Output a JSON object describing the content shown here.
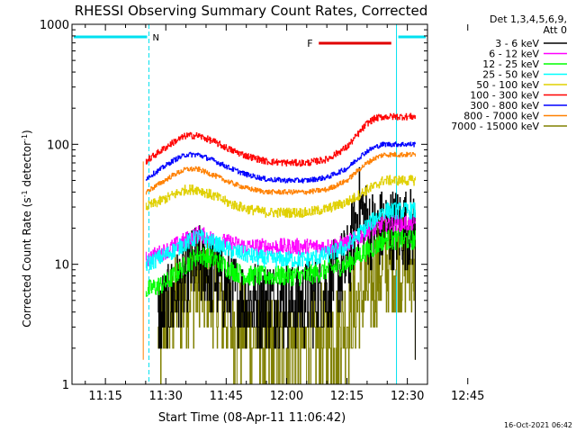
{
  "chart_data": {
    "type": "line",
    "title": "RHESSI Observing Summary Count Rates, Corrected",
    "xlabel": "Start Time (08-Apr-11 11:06:42)",
    "ylabel_main": "Corrected Count Rate (s",
    "ylabel_sup1": "-1",
    "ylabel_mid": " detector",
    "ylabel_sup2": "-1",
    "ylabel_end": ")",
    "yscale": "log",
    "ylim": [
      1,
      1000
    ],
    "xlim_min": [
      6.7,
      95
    ],
    "xtick_minutes": [
      15,
      30,
      45,
      60,
      75,
      90,
      105
    ],
    "xtick_labels": [
      "11:15",
      "11:30",
      "11:45",
      "12:00",
      "12:15",
      "12:30",
      "12:45"
    ],
    "ytick_values": [
      1,
      10,
      100,
      1000
    ],
    "ytick_labels": [
      "1",
      "10",
      "100",
      "1000"
    ],
    "legend_header": [
      "Det 1,3,4,5,6,9,",
      "Att 0"
    ],
    "timestamp": "16-Oct-2021 06:42",
    "annotations": {
      "night_label": "N",
      "flare_label": "F",
      "night_intervals": [
        [
          6.7,
          25.8
        ],
        [
          87.3,
          95
        ]
      ],
      "flare_interval": [
        68.0,
        86.0
      ],
      "data_start": 24.4,
      "data_end": 92.0
    },
    "series": [
      {
        "name": "3 - 6 keV",
        "color": "#000000",
        "x": [
          28,
          32,
          36,
          38,
          42,
          46,
          50,
          55,
          60,
          65,
          70,
          75,
          78,
          80,
          82,
          84
        ],
        "y": [
          3.5,
          5.5,
          9,
          10,
          8,
          6,
          5,
          5,
          5,
          5,
          6,
          10,
          30,
          22,
          18,
          20
        ]
      },
      {
        "name": "6 - 12 keV",
        "color": "#ff00ff",
        "x": [
          25,
          30,
          35,
          38,
          42,
          46,
          50,
          55,
          60,
          65,
          70,
          75,
          78,
          80,
          82,
          84
        ],
        "y": [
          11,
          13,
          16,
          18,
          16,
          15,
          14,
          14,
          14,
          14,
          14,
          15,
          17,
          19,
          20,
          22
        ]
      },
      {
        "name": "12 - 25 keV",
        "color": "#00ff00",
        "x": [
          25,
          30,
          35,
          38,
          42,
          46,
          50,
          55,
          60,
          65,
          70,
          75,
          78,
          80,
          82,
          84
        ],
        "y": [
          6,
          7,
          10,
          12,
          11,
          9,
          8,
          8,
          8,
          8,
          9,
          10,
          12,
          13,
          14,
          16
        ]
      },
      {
        "name": "25 - 50 keV",
        "color": "#00ffff",
        "x": [
          25,
          30,
          35,
          38,
          42,
          46,
          50,
          55,
          60,
          65,
          70,
          75,
          78,
          80,
          82,
          84
        ],
        "y": [
          10,
          12,
          15,
          17,
          15,
          13,
          12,
          11,
          11,
          11,
          12,
          14,
          18,
          21,
          24,
          28
        ]
      },
      {
        "name": "50 - 100 keV",
        "color": "#e0d000",
        "x": [
          25,
          28,
          32,
          35,
          38,
          42,
          46,
          50,
          55,
          60,
          65,
          70,
          75,
          78,
          80,
          82,
          84
        ],
        "y": [
          30,
          33,
          38,
          42,
          42,
          37,
          32,
          29,
          27,
          27,
          27,
          29,
          33,
          38,
          42,
          45,
          50
        ]
      },
      {
        "name": "100 - 300 keV",
        "color": "#ff0000",
        "x": [
          25,
          28,
          32,
          35,
          38,
          42,
          46,
          50,
          55,
          60,
          65,
          70,
          75,
          78,
          80,
          82,
          84
        ],
        "y": [
          72,
          85,
          105,
          118,
          118,
          105,
          90,
          80,
          72,
          70,
          70,
          75,
          95,
          125,
          150,
          165,
          170
        ]
      },
      {
        "name": "300 - 800 keV",
        "color": "#0000ff",
        "x": [
          25,
          28,
          32,
          35,
          38,
          42,
          46,
          50,
          55,
          60,
          65,
          70,
          75,
          78,
          80,
          82,
          84
        ],
        "y": [
          52,
          60,
          74,
          82,
          82,
          73,
          63,
          56,
          51,
          50,
          50,
          53,
          63,
          78,
          88,
          95,
          100
        ]
      },
      {
        "name": "800 - 7000 keV",
        "color": "#ff8000",
        "x": [
          25,
          28,
          32,
          35,
          38,
          42,
          46,
          50,
          55,
          60,
          65,
          70,
          75,
          78,
          80,
          82,
          84
        ],
        "y": [
          40,
          46,
          56,
          62,
          62,
          55,
          48,
          43,
          40,
          40,
          40,
          42,
          50,
          62,
          70,
          77,
          82
        ]
      },
      {
        "name": "7000 - 15000 keV",
        "color": "#808000",
        "x": [
          28,
          32,
          36,
          38,
          42,
          46,
          50,
          55,
          60,
          65,
          70,
          75,
          78,
          80,
          82,
          84
        ],
        "y": [
          2.5,
          4.5,
          6.5,
          7,
          5.5,
          3.5,
          2.5,
          2.0,
          2.0,
          2.0,
          2.5,
          3.5,
          5,
          6,
          8,
          10
        ]
      }
    ]
  }
}
